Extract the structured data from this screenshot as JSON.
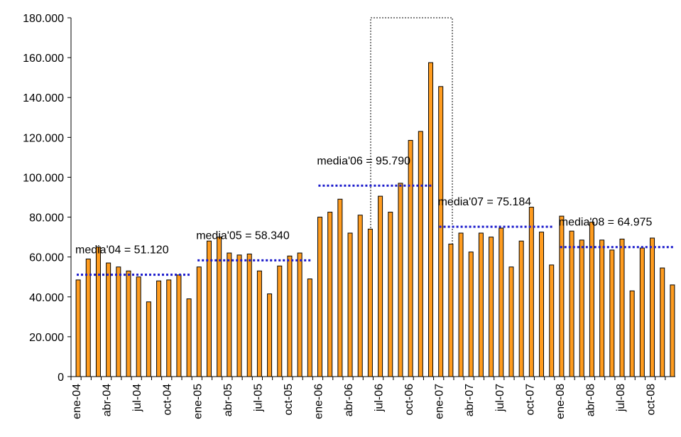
{
  "chart_data": {
    "type": "bar",
    "categories": [
      "ene-04",
      null,
      null,
      "abr-04",
      null,
      null,
      "jul-04",
      null,
      null,
      "oct-04",
      null,
      null,
      "ene-05",
      null,
      null,
      "abr-05",
      null,
      null,
      "jul-05",
      null,
      null,
      "oct-05",
      null,
      null,
      "ene-06",
      null,
      null,
      "abr-06",
      null,
      null,
      "jul-06",
      null,
      null,
      "oct-06",
      null,
      null,
      "ene-07",
      null,
      null,
      "abr-07",
      null,
      null,
      "jul-07",
      null,
      null,
      "oct-07",
      null,
      null,
      "ene-08",
      null,
      null,
      "abr-08",
      null,
      null,
      "jul-08",
      null,
      null,
      "oct-08",
      null,
      null
    ],
    "values": [
      48500,
      59000,
      65000,
      57000,
      55000,
      53000,
      50000,
      37500,
      48000,
      48500,
      51000,
      39000,
      55000,
      68000,
      70000,
      62000,
      61000,
      61500,
      53000,
      41500,
      55500,
      60500,
      62000,
      49000,
      80000,
      82500,
      89000,
      72000,
      81000,
      74000,
      90500,
      82500,
      97000,
      118500,
      123000,
      157500,
      145500,
      66500,
      72000,
      62500,
      72000,
      70000,
      74500,
      55000,
      68000,
      85000,
      72500,
      56000,
      80500,
      73000,
      68500,
      77500,
      68500,
      63500,
      69000,
      43000,
      64500,
      69500,
      54500,
      46000
    ],
    "color": "#ff9c1f",
    "ylim": [
      0,
      180000
    ],
    "yticks": [
      0,
      {
        "value": 20000,
        "label": "20.000"
      },
      {
        "value": 40000,
        "label": "40.000"
      },
      {
        "value": 60000,
        "label": "60.000"
      },
      {
        "value": 80000,
        "label": "80.000"
      },
      {
        "value": 100000,
        "label": "100.000"
      },
      {
        "value": 120000,
        "label": "120.000"
      },
      {
        "value": 140000,
        "label": "140.000"
      },
      {
        "value": 160000,
        "label": "160.000"
      },
      {
        "value": 180000,
        "label": "180.000"
      }
    ],
    "annotations": [
      {
        "text": "media'04 = 51.120",
        "value": 51120
      },
      {
        "text": "media'05 = 58.340",
        "value": 58340
      },
      {
        "text": "media'06 = 95.790",
        "value": 95790
      },
      {
        "text": "media'07 = 75.184",
        "value": 75184
      },
      {
        "text": "media'08 = 64.975",
        "value": 64975
      }
    ],
    "mean_color": "#1a1acc"
  }
}
